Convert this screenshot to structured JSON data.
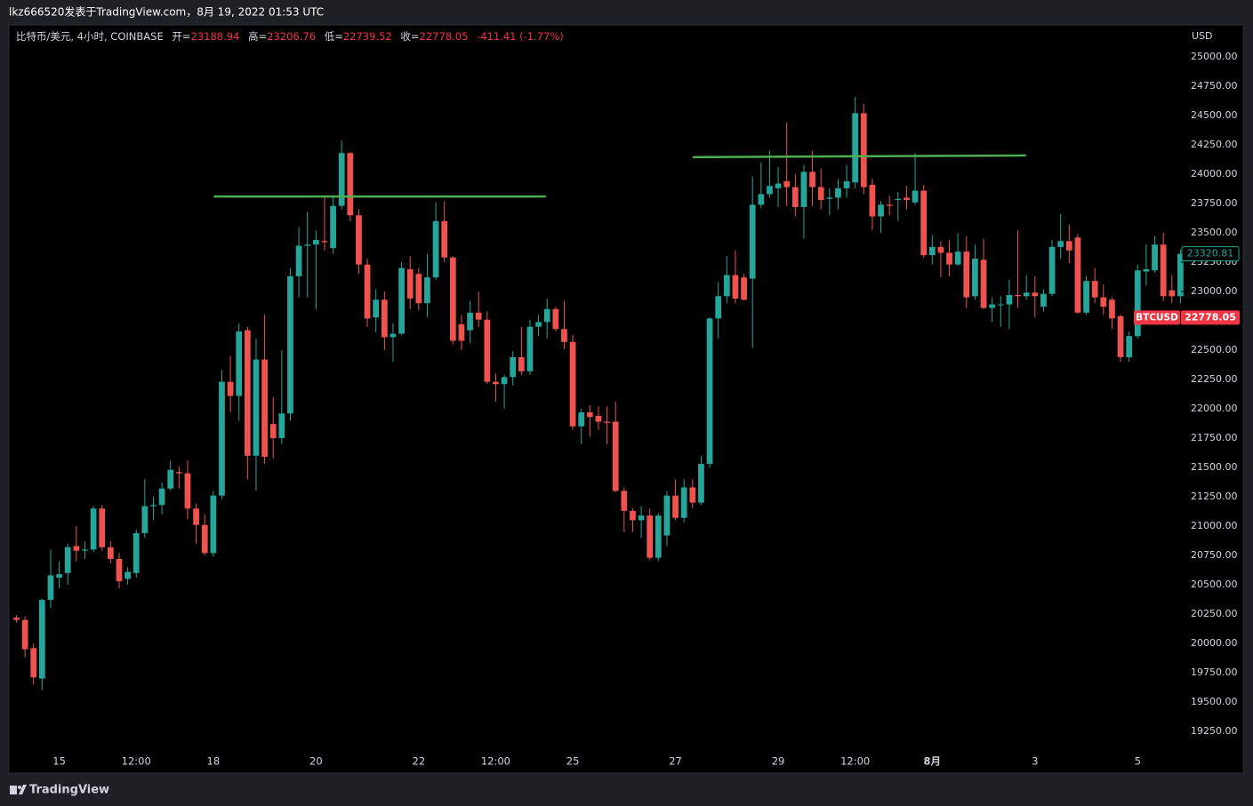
{
  "page": {
    "title_bar": "lkz666520发表于TradingView.com，8月 19, 2022 01:53 UTC",
    "brand": "TradingView"
  },
  "chart_data": {
    "type": "candlestick",
    "header": {
      "symbol": "比特币/美元, 4小时, COINBASE",
      "open_label": "开=",
      "open": 23188.94,
      "high_label": "高=",
      "high": 23206.76,
      "low_label": "低=",
      "low": 22739.52,
      "close_label": "收=",
      "close": 22778.05,
      "change": "-411.41 (-1.77%)"
    },
    "y_axis_title": "USD",
    "symbol_tag": "BTCUSD",
    "up_color": "#26a69a",
    "down_color": "#ef5350",
    "xlim": [
      -0.88,
      136.06
    ],
    "xticks": [
      {
        "value": 5,
        "label": "15"
      },
      {
        "value": 14,
        "label": "12:00"
      },
      {
        "value": 23,
        "label": "18"
      },
      {
        "value": 35,
        "label": "20"
      },
      {
        "value": 47,
        "label": "22"
      },
      {
        "value": 56,
        "label": "12:00"
      },
      {
        "value": 65,
        "label": "25"
      },
      {
        "value": 77,
        "label": "27"
      },
      {
        "value": 89,
        "label": "29"
      },
      {
        "value": 98,
        "label": "12:00"
      },
      {
        "value": 107,
        "label": "8月"
      },
      {
        "value": 119,
        "label": "3"
      },
      {
        "value": 131,
        "label": "5"
      }
    ],
    "ylim": [
      19106,
      25273
    ],
    "yticks": [
      {
        "value": 19250,
        "label": "19250.00"
      },
      {
        "value": 19500,
        "label": "19500.00"
      },
      {
        "value": 19750,
        "label": "19750.00"
      },
      {
        "value": 20000,
        "label": "20000.00"
      },
      {
        "value": 20250,
        "label": "20250.00"
      },
      {
        "value": 20500,
        "label": "20500.00"
      },
      {
        "value": 20750,
        "label": "20750.00"
      },
      {
        "value": 21000,
        "label": "21000.00"
      },
      {
        "value": 21250,
        "label": "21250.00"
      },
      {
        "value": 21500,
        "label": "21500.00"
      },
      {
        "value": 21750,
        "label": "21750.00"
      },
      {
        "value": 22000,
        "label": "22000.00"
      },
      {
        "value": 22250,
        "label": "22250.00"
      },
      {
        "value": 22500,
        "label": "22500.00"
      },
      {
        "value": 22750,
        "label": "22750.00"
      },
      {
        "value": 23000,
        "label": "23000.00"
      },
      {
        "value": 23250,
        "label": "23250.00"
      },
      {
        "value": 23500,
        "label": "23500.00"
      },
      {
        "value": 23750,
        "label": "23750.00"
      },
      {
        "value": 24000,
        "label": "24000.00"
      },
      {
        "value": 24250,
        "label": "24250.00"
      },
      {
        "value": 24500,
        "label": "24500.00"
      },
      {
        "value": 24750,
        "label": "24750.00"
      },
      {
        "value": 25000,
        "label": "25000.00"
      }
    ],
    "lines": [
      {
        "color": "#4caf50",
        "x": [
          23.05,
          61.86
        ],
        "y": [
          23810,
          23810
        ]
      },
      {
        "color": "#4caf50",
        "x": [
          79.03,
          117.95
        ],
        "y": [
          24145,
          24160
        ]
      }
    ],
    "open": [
      20220,
      20200,
      19960,
      19700,
      20370,
      20560,
      20600,
      20830,
      20790,
      20800,
      21150,
      20820,
      20720,
      20550,
      20600,
      20940,
      21170,
      21180,
      21320,
      21460,
      21450,
      21150,
      21010,
      20770,
      21260,
      22230,
      22110,
      22670,
      21600,
      22420,
      21870,
      21750,
      21960,
      23130,
      23390,
      23400,
      23430,
      23370,
      23730,
      24180,
      23650,
      23230,
      22780,
      22930,
      22610,
      22640,
      23190,
      23150,
      22900,
      23120,
      23600,
      23290,
      22720,
      22670,
      22820,
      22760,
      22230,
      22210,
      22270,
      22440,
      22320,
      22700,
      22740,
      22850,
      22680,
      22570,
      21850,
      21970,
      21940,
      21890,
      21890,
      21300,
      21130,
      21050,
      21090,
      20730,
      20920,
      21260,
      21070,
      21330,
      21200,
      21530,
      22770,
      22960,
      23140,
      23120,
      23110,
      23740,
      23830,
      23880,
      23940,
      23890,
      23720,
      24020,
      23890,
      23790,
      23800,
      23880,
      23930,
      24520,
      23910,
      23640,
      23740,
      23780,
      23800,
      23760,
      23860,
      23310,
      23380,
      23330,
      23230,
      23340,
      22960,
      23270,
      22860,
      22890,
      22890,
      22970,
      22960,
      22990,
      22870,
      22980,
      23380,
      23430,
      23460,
      22820,
      23090,
      22950,
      22930,
      22790,
      22440,
      22620,
      23170,
      23180,
      23400,
      23010,
      22960
    ],
    "high": [
      20240,
      20230,
      20000,
      20380,
      20800,
      20700,
      20850,
      21000,
      20870,
      21170,
      21180,
      20870,
      20770,
      20650,
      20970,
      21400,
      21250,
      21370,
      21560,
      21510,
      21560,
      21190,
      21100,
      21300,
      22330,
      22450,
      22730,
      22700,
      22600,
      22800,
      22100,
      22500,
      23200,
      23550,
      23680,
      23520,
      23820,
      23820,
      24290,
      24190,
      23700,
      23280,
      23020,
      23000,
      22730,
      23250,
      23300,
      23200,
      23320,
      23760,
      23770,
      23300,
      22800,
      22920,
      23000,
      22830,
      22300,
      22290,
      22490,
      22700,
      22760,
      22800,
      22940,
      22870,
      22920,
      22630,
      22000,
      22030,
      22020,
      22020,
      22060,
      21330,
      21150,
      21170,
      21150,
      21110,
      21300,
      21400,
      21400,
      21400,
      21600,
      22780,
      23080,
      23300,
      23350,
      23150,
      23980,
      24100,
      24200,
      24060,
      24440,
      24000,
      24080,
      24200,
      24050,
      23880,
      23960,
      24080,
      24660,
      24600,
      23960,
      23770,
      23820,
      23850,
      23900,
      24180,
      23910,
      23480,
      23430,
      23440,
      23500,
      23470,
      23400,
      23450,
      22950,
      22960,
      23100,
      23520,
      23140,
      23130,
      23020,
      23440,
      23660,
      23570,
      23490,
      23130,
      23200,
      23060,
      22950,
      22800,
      22660,
      23230,
      23400,
      23470,
      23500,
      23140,
      23360
    ],
    "low": [
      20180,
      19880,
      19650,
      19600,
      20300,
      20470,
      20500,
      20700,
      20720,
      20780,
      20790,
      20680,
      20470,
      20500,
      20560,
      20900,
      21050,
      21100,
      21300,
      21320,
      21060,
      20850,
      20750,
      20740,
      21230,
      21970,
      21900,
      21400,
      21300,
      21530,
      21580,
      21700,
      21900,
      22950,
      22950,
      22850,
      23350,
      23320,
      23700,
      23600,
      23150,
      22700,
      22650,
      22500,
      22400,
      22630,
      22850,
      22840,
      22780,
      23100,
      23250,
      22550,
      22500,
      22560,
      22700,
      22210,
      22060,
      22000,
      22200,
      22290,
      22290,
      22620,
      22600,
      22660,
      22510,
      21820,
      21700,
      21760,
      21820,
      21700,
      21290,
      20950,
      20950,
      20900,
      20710,
      20700,
      20830,
      21050,
      21030,
      21150,
      21180,
      21500,
      22600,
      22900,
      22900,
      22920,
      22520,
      23710,
      23800,
      23720,
      23730,
      23640,
      23450,
      23730,
      23700,
      23650,
      23700,
      23800,
      23880,
      23830,
      23520,
      23500,
      23650,
      23600,
      23700,
      23740,
      23290,
      23230,
      23120,
      23130,
      23220,
      22860,
      22930,
      22850,
      22740,
      22700,
      22680,
      22860,
      22930,
      22780,
      22830,
      22960,
      23280,
      23240,
      22810,
      22800,
      22900,
      22800,
      22680,
      22400,
      22400,
      22600,
      23050,
      23160,
      22920,
      22900,
      22900
    ],
    "close": [
      20200,
      19950,
      19710,
      20370,
      20580,
      20590,
      20820,
      20790,
      20800,
      21150,
      20820,
      20720,
      20530,
      20610,
      20940,
      21170,
      21180,
      21320,
      21480,
      21450,
      21150,
      21010,
      20770,
      21260,
      22230,
      22110,
      22660,
      21600,
      22420,
      21590,
      21750,
      21960,
      23130,
      23390,
      23400,
      23440,
      23420,
      23730,
      24180,
      23650,
      23230,
      22770,
      22930,
      22610,
      22640,
      23200,
      22940,
      22900,
      23120,
      23600,
      23290,
      22580,
      22580,
      22820,
      22760,
      22230,
      22210,
      22270,
      22440,
      22320,
      22700,
      22740,
      22850,
      22680,
      22570,
      21850,
      21970,
      21930,
      21890,
      21880,
      21300,
      21130,
      21050,
      21090,
      20730,
      21090,
      21260,
      21070,
      21330,
      21200,
      21530,
      22770,
      22960,
      23140,
      22940,
      22930,
      23740,
      23830,
      23900,
      23920,
      23890,
      23720,
      24020,
      23890,
      23780,
      23800,
      23880,
      23940,
      24520,
      23890,
      23640,
      23740,
      23730,
      23790,
      23780,
      23860,
      23310,
      23380,
      23330,
      23230,
      23340,
      22950,
      23280,
      22860,
      22890,
      22890,
      22970,
      22960,
      22990,
      22960,
      22980,
      23380,
      23430,
      23350,
      22820,
      23090,
      22950,
      22870,
      22770,
      22440,
      22620,
      23180,
      23190,
      23400,
      22960,
      22960,
      23320.81
    ]
  }
}
